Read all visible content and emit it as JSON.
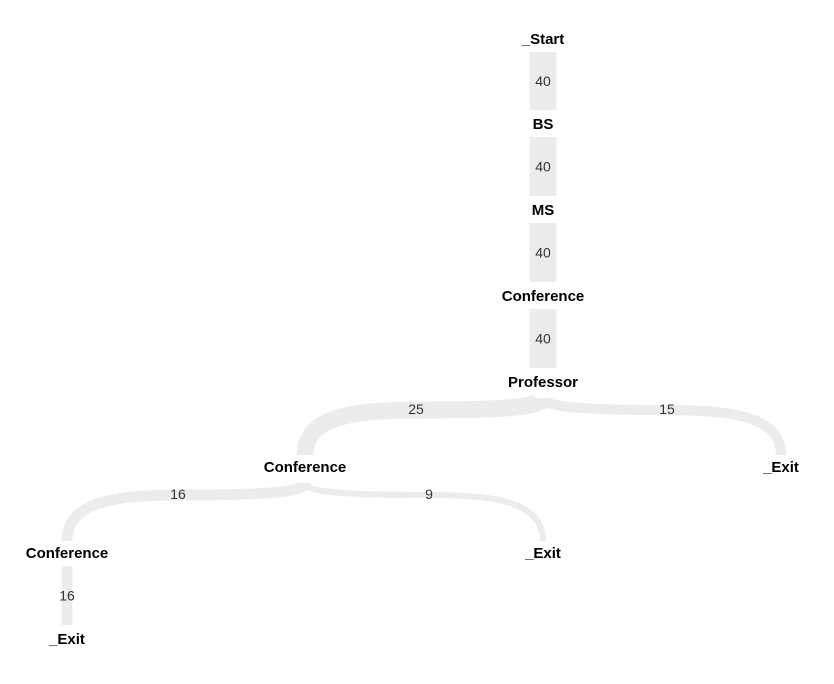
{
  "colors": {
    "flow": "#ececec",
    "node_text": "#000000",
    "edge_text": "#333333"
  },
  "nodes": [
    {
      "id": "start",
      "label": "_Start"
    },
    {
      "id": "bs",
      "label": "BS"
    },
    {
      "id": "ms",
      "label": "MS"
    },
    {
      "id": "conf1",
      "label": "Conference"
    },
    {
      "id": "prof",
      "label": "Professor"
    },
    {
      "id": "conf2",
      "label": "Conference"
    },
    {
      "id": "exit1",
      "label": "_Exit"
    },
    {
      "id": "conf3",
      "label": "Conference"
    },
    {
      "id": "exit2",
      "label": "_Exit"
    },
    {
      "id": "exit3",
      "label": "_Exit"
    }
  ],
  "edges": [
    {
      "from": "start",
      "to": "bs",
      "value": 40
    },
    {
      "from": "bs",
      "to": "ms",
      "value": 40
    },
    {
      "from": "ms",
      "to": "conf1",
      "value": 40
    },
    {
      "from": "conf1",
      "to": "prof",
      "value": 40
    },
    {
      "from": "prof",
      "to": "conf2",
      "value": 25
    },
    {
      "from": "prof",
      "to": "exit1",
      "value": 15
    },
    {
      "from": "conf2",
      "to": "conf3",
      "value": 16
    },
    {
      "from": "conf2",
      "to": "exit2",
      "value": 9
    },
    {
      "from": "conf3",
      "to": "exit3",
      "value": 16
    }
  ]
}
